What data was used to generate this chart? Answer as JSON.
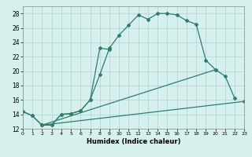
{
  "xlabel": "Humidex (Indice chaleur)",
  "bg_color": "#d6f0ee",
  "grid_color": "#aed4ce",
  "line_color": "#2e7d6e",
  "xlim": [
    0,
    23
  ],
  "ylim": [
    12,
    29
  ],
  "xticks": [
    0,
    1,
    2,
    3,
    4,
    5,
    6,
    7,
    8,
    9,
    10,
    11,
    12,
    13,
    14,
    15,
    16,
    17,
    18,
    19,
    20,
    21,
    22,
    23
  ],
  "yticks": [
    12,
    14,
    16,
    18,
    20,
    22,
    24,
    26,
    28
  ],
  "series1_x": [
    0,
    1,
    2,
    3,
    4,
    5,
    6,
    7,
    8,
    9,
    10,
    11,
    12,
    13,
    14,
    15,
    16,
    17,
    18,
    19,
    20,
    21,
    22
  ],
  "series1_y": [
    14.4,
    13.8,
    12.5,
    12.5,
    14.0,
    14.1,
    14.5,
    16.0,
    19.5,
    23.2,
    25.0,
    26.4,
    27.8,
    27.2,
    28.0,
    28.0,
    27.8,
    27.0,
    26.5,
    21.5,
    20.2,
    19.3,
    16.2
  ],
  "series2_x": [
    0,
    1,
    2,
    3,
    4,
    5,
    6,
    7,
    8,
    9
  ],
  "series2_y": [
    14.4,
    13.8,
    12.5,
    12.5,
    14.0,
    14.1,
    14.5,
    16.0,
    23.2,
    23.0
  ],
  "series3_x": [
    2,
    23
  ],
  "series3_y": [
    12.5,
    15.8
  ],
  "series4_x": [
    2,
    20
  ],
  "series4_y": [
    12.5,
    20.2
  ]
}
